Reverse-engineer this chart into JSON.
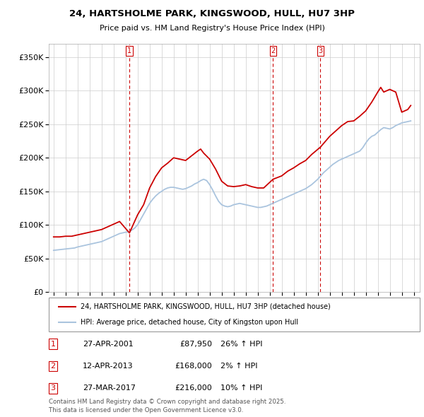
{
  "title": "24, HARTSHOLME PARK, KINGSWOOD, HULL, HU7 3HP",
  "subtitle": "Price paid vs. HM Land Registry's House Price Index (HPI)",
  "ylim": [
    0,
    370000
  ],
  "yticks": [
    0,
    50000,
    100000,
    150000,
    200000,
    250000,
    300000,
    350000
  ],
  "ytick_labels": [
    "£0",
    "£50K",
    "£100K",
    "£150K",
    "£200K",
    "£250K",
    "£300K",
    "£350K"
  ],
  "hpi_color": "#aac4de",
  "price_color": "#cc0000",
  "vline_color": "#cc0000",
  "grid_color": "#cccccc",
  "background_color": "#ffffff",
  "sales": [
    {
      "date_num": 2001.32,
      "price": 87950,
      "label": "1"
    },
    {
      "date_num": 2013.28,
      "price": 168000,
      "label": "2"
    },
    {
      "date_num": 2017.23,
      "price": 216000,
      "label": "3"
    }
  ],
  "sale_dates": [
    "27-APR-2001",
    "12-APR-2013",
    "27-MAR-2017"
  ],
  "sale_prices": [
    "£87,950",
    "£168,000",
    "£216,000"
  ],
  "sale_hpi_pct": [
    "26% ↑ HPI",
    "2% ↑ HPI",
    "10% ↑ HPI"
  ],
  "legend_line1": "24, HARTSHOLME PARK, KINGSWOOD, HULL, HU7 3HP (detached house)",
  "legend_line2": "HPI: Average price, detached house, City of Kingston upon Hull",
  "footer": "Contains HM Land Registry data © Crown copyright and database right 2025.\nThis data is licensed under the Open Government Licence v3.0.",
  "xlim": [
    1994.6,
    2025.5
  ],
  "hpi_data": {
    "years": [
      1995.0,
      1995.25,
      1995.5,
      1995.75,
      1996.0,
      1996.25,
      1996.5,
      1996.75,
      1997.0,
      1997.25,
      1997.5,
      1997.75,
      1998.0,
      1998.25,
      1998.5,
      1998.75,
      1999.0,
      1999.25,
      1999.5,
      1999.75,
      2000.0,
      2000.25,
      2000.5,
      2000.75,
      2001.0,
      2001.25,
      2001.5,
      2001.75,
      2002.0,
      2002.25,
      2002.5,
      2002.75,
      2003.0,
      2003.25,
      2003.5,
      2003.75,
      2004.0,
      2004.25,
      2004.5,
      2004.75,
      2005.0,
      2005.25,
      2005.5,
      2005.75,
      2006.0,
      2006.25,
      2006.5,
      2006.75,
      2007.0,
      2007.25,
      2007.5,
      2007.75,
      2008.0,
      2008.25,
      2008.5,
      2008.75,
      2009.0,
      2009.25,
      2009.5,
      2009.75,
      2010.0,
      2010.25,
      2010.5,
      2010.75,
      2011.0,
      2011.25,
      2011.5,
      2011.75,
      2012.0,
      2012.25,
      2012.5,
      2012.75,
      2013.0,
      2013.25,
      2013.5,
      2013.75,
      2014.0,
      2014.25,
      2014.5,
      2014.75,
      2015.0,
      2015.25,
      2015.5,
      2015.75,
      2016.0,
      2016.25,
      2016.5,
      2016.75,
      2017.0,
      2017.25,
      2017.5,
      2017.75,
      2018.0,
      2018.25,
      2018.5,
      2018.75,
      2019.0,
      2019.25,
      2019.5,
      2019.75,
      2020.0,
      2020.25,
      2020.5,
      2020.75,
      2021.0,
      2021.25,
      2021.5,
      2021.75,
      2022.0,
      2022.25,
      2022.5,
      2022.75,
      2023.0,
      2023.25,
      2023.5,
      2023.75,
      2024.0,
      2024.25,
      2024.5,
      2024.75
    ],
    "values": [
      62000,
      62500,
      63000,
      63500,
      64000,
      64500,
      65000,
      65500,
      67000,
      68000,
      69000,
      70000,
      71000,
      72000,
      73000,
      74000,
      75000,
      77000,
      79000,
      81000,
      83000,
      85000,
      87000,
      88000,
      89000,
      89500,
      92000,
      95000,
      100000,
      108000,
      116000,
      124000,
      132000,
      138000,
      143000,
      147000,
      150000,
      153000,
      155000,
      156000,
      156000,
      155000,
      154000,
      153000,
      154000,
      156000,
      158000,
      161000,
      163000,
      166000,
      168000,
      166000,
      160000,
      152000,
      143000,
      135000,
      130000,
      128000,
      127000,
      128000,
      130000,
      131000,
      132000,
      131000,
      130000,
      129000,
      128000,
      127000,
      126000,
      126000,
      127000,
      128000,
      130000,
      132000,
      134000,
      136000,
      138000,
      140000,
      142000,
      144000,
      146000,
      148000,
      150000,
      152000,
      154000,
      157000,
      160000,
      164000,
      168000,
      173000,
      178000,
      182000,
      186000,
      190000,
      193000,
      196000,
      198000,
      200000,
      202000,
      204000,
      206000,
      208000,
      210000,
      215000,
      222000,
      228000,
      232000,
      234000,
      238000,
      242000,
      245000,
      244000,
      243000,
      245000,
      248000,
      250000,
      252000,
      253000,
      254000,
      255000
    ]
  },
  "price_data": {
    "years": [
      1995.0,
      1995.5,
      1996.0,
      1996.5,
      1997.0,
      1997.5,
      1998.0,
      1998.5,
      1999.0,
      1999.5,
      2000.0,
      2000.5,
      2001.32,
      2002.0,
      2002.5,
      2003.0,
      2003.5,
      2004.0,
      2004.5,
      2005.0,
      2005.5,
      2006.0,
      2006.5,
      2007.0,
      2007.25,
      2007.5,
      2008.0,
      2008.5,
      2009.0,
      2009.5,
      2010.0,
      2010.5,
      2011.0,
      2011.5,
      2012.0,
      2012.5,
      2013.28,
      2014.0,
      2014.5,
      2015.0,
      2015.5,
      2016.0,
      2016.5,
      2017.23,
      2018.0,
      2018.5,
      2019.0,
      2019.5,
      2020.0,
      2020.5,
      2021.0,
      2021.5,
      2022.0,
      2022.25,
      2022.5,
      2023.0,
      2023.5,
      2024.0,
      2024.5,
      2024.75
    ],
    "values": [
      82000,
      82000,
      83000,
      83000,
      85000,
      87000,
      89000,
      91000,
      93000,
      97000,
      101000,
      105000,
      87950,
      115000,
      130000,
      155000,
      172000,
      185000,
      192000,
      200000,
      198000,
      196000,
      203000,
      210000,
      213000,
      207000,
      198000,
      183000,
      165000,
      158000,
      157000,
      158000,
      160000,
      157000,
      155000,
      155000,
      168000,
      173000,
      180000,
      185000,
      191000,
      196000,
      205000,
      216000,
      232000,
      240000,
      248000,
      254000,
      255000,
      262000,
      270000,
      283000,
      298000,
      305000,
      298000,
      302000,
      298000,
      268000,
      272000,
      278000
    ]
  }
}
